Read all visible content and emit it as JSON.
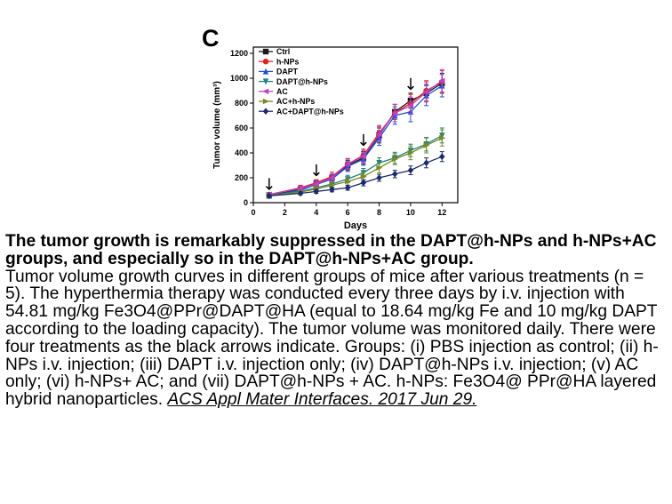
{
  "panel_label": "C",
  "caption": {
    "bold": "The tumor growth is remarkably suppressed in the DAPT@h-NPs and h-NPs+AC groups, and especially so in the DAPT@h-NPs+AC group.",
    "body": "Tumor volume growth curves in different groups of mice after various treatments (n = 5). The hyperthermia therapy was conducted every three days by i.v. injection with 54.81 mg/kg Fe3O4@PPr@DAPT@HA (equal to 18.64 mg/kg Fe and 10 mg/kg DAPT according to the loading capacity). The tumor volume was monitored daily. There were four treatments as the black arrows indicate. Groups: (i) PBS injection as control; (ii) h-NPs i.v. injection; (iii) DAPT i.v. injection only; (iv) DAPT@h-NPs i.v. injection; (v) AC only; (vi) h-NPs+ AC; and (vii) DAPT@h-NPs + AC. h-NPs: Fe3O4@ PPr@HA layered hybrid nanoparticles. ",
    "citation": "ACS Appl Mater Interfaces. 2017 Jun 29."
  },
  "chart_data": {
    "type": "line",
    "xlabel": "Days",
    "ylabel": "Tumor volume (mm³)",
    "xlim": [
      0,
      13
    ],
    "ylim": [
      0,
      1250
    ],
    "xticks": [
      0,
      2,
      4,
      6,
      8,
      10,
      12
    ],
    "yticks": [
      0,
      200,
      400,
      600,
      800,
      1000,
      1200
    ],
    "legend_position": "top-left",
    "treatment_days": [
      1,
      4,
      7,
      10
    ],
    "arrow_label": "↓",
    "x": [
      1,
      3,
      4,
      5,
      6,
      7,
      8,
      9,
      10,
      11,
      12
    ],
    "series": [
      {
        "name": "Ctrl",
        "color": "#1a1a1a",
        "marker": "square",
        "values": [
          60,
          110,
          155,
          200,
          300,
          360,
          540,
          730,
          820,
          880,
          960
        ],
        "errors": [
          10,
          20,
          25,
          30,
          40,
          50,
          60,
          60,
          60,
          70,
          80
        ]
      },
      {
        "name": "h-NPs",
        "color": "#e02020",
        "marker": "circle",
        "values": [
          65,
          120,
          160,
          210,
          310,
          380,
          560,
          720,
          800,
          900,
          970
        ],
        "errors": [
          10,
          20,
          25,
          35,
          45,
          50,
          60,
          70,
          70,
          80,
          90
        ]
      },
      {
        "name": "DAPT",
        "color": "#2050d0",
        "marker": "triangle-up",
        "values": [
          55,
          100,
          145,
          190,
          290,
          350,
          520,
          700,
          730,
          860,
          940
        ],
        "errors": [
          10,
          20,
          25,
          30,
          40,
          50,
          60,
          70,
          80,
          80,
          90
        ]
      },
      {
        "name": "DAPT@h-NPs",
        "color": "#208080",
        "marker": "triangle-down",
        "values": [
          60,
          90,
          120,
          150,
          190,
          240,
          320,
          360,
          420,
          470,
          540
        ],
        "errors": [
          10,
          15,
          20,
          25,
          30,
          35,
          40,
          45,
          50,
          55,
          60
        ]
      },
      {
        "name": "AC",
        "color": "#c040c0",
        "marker": "triangle-left",
        "values": [
          65,
          115,
          150,
          200,
          310,
          370,
          550,
          720,
          780,
          890,
          980
        ],
        "errors": [
          10,
          20,
          25,
          30,
          40,
          50,
          60,
          70,
          70,
          80,
          90
        ]
      },
      {
        "name": "AC+h-NPs",
        "color": "#7a8a20",
        "marker": "triangle-right",
        "values": [
          55,
          85,
          110,
          140,
          170,
          210,
          280,
          350,
          400,
          460,
          520
        ],
        "errors": [
          10,
          15,
          20,
          25,
          30,
          35,
          40,
          45,
          55,
          60,
          65
        ]
      },
      {
        "name": "AC+DAPT@h-NPs",
        "color": "#1a2a6a",
        "marker": "diamond",
        "values": [
          55,
          75,
          90,
          105,
          120,
          160,
          200,
          230,
          260,
          320,
          370
        ],
        "errors": [
          10,
          12,
          15,
          18,
          20,
          25,
          28,
          30,
          35,
          40,
          40
        ]
      }
    ]
  }
}
